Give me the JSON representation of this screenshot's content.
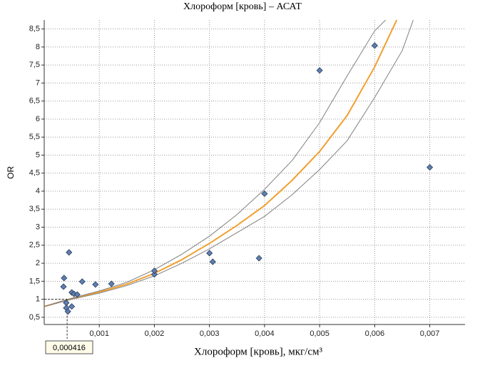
{
  "chart_data": {
    "type": "scatter",
    "title": "Хлороформ [кровь] – АСАТ",
    "x_label": "Хлороформ [кровь], мкг/см³",
    "y_label": "OR",
    "xlim": [
      0,
      0.00764
    ],
    "ylim": [
      0.3,
      8.75
    ],
    "xticks": [
      {
        "value": 0.001,
        "label": "0,001"
      },
      {
        "value": 0.002,
        "label": "0,002"
      },
      {
        "value": 0.003,
        "label": "0,003"
      },
      {
        "value": 0.004,
        "label": "0,004"
      },
      {
        "value": 0.005,
        "label": "0,005"
      },
      {
        "value": 0.006,
        "label": "0,006"
      },
      {
        "value": 0.007,
        "label": "0,007"
      }
    ],
    "yticks": [
      {
        "value": 0.5,
        "label": "0,5"
      },
      1,
      {
        "value": 1.5,
        "label": "1,5"
      },
      2,
      {
        "value": 2.5,
        "label": "2,5"
      },
      3,
      {
        "value": 3.5,
        "label": "3,5"
      },
      4,
      {
        "value": 4.5,
        "label": "4,5"
      },
      5,
      {
        "value": 5.5,
        "label": "5,5"
      },
      6,
      {
        "value": 6.5,
        "label": "6,5"
      },
      7,
      {
        "value": 7.5,
        "label": "7,5"
      },
      8,
      {
        "value": 8.5,
        "label": "8,5"
      }
    ],
    "grid": true,
    "points": {
      "color": "#5f7fae",
      "x": [
        0.00045,
        0.00036,
        0.00035,
        0.0004,
        0.0004,
        0.00043,
        0.0005,
        0.0005,
        0.00054,
        0.0006,
        0.00069,
        0.00093,
        0.00122,
        0.002,
        0.002,
        0.003,
        0.00306,
        0.0039,
        0.004,
        0.005,
        0.006,
        0.007
      ],
      "values": [
        2.3,
        1.59,
        1.35,
        0.9,
        0.76,
        0.66,
        0.8,
        1.19,
        1.15,
        1.13,
        1.49,
        1.41,
        1.43,
        1.69,
        1.79,
        2.28,
        2.04,
        2.14,
        3.93,
        7.35,
        8.04,
        4.66
      ]
    },
    "curves": [
      {
        "color": "#f0a030",
        "x": [
          0,
          0.0005,
          0.001,
          0.0015,
          0.002,
          0.0025,
          0.003,
          0.0035,
          0.004,
          0.0045,
          0.005,
          0.0055,
          0.006,
          0.0064
        ],
        "values": [
          0.8,
          1.02,
          1.2,
          1.42,
          1.72,
          2.1,
          2.55,
          3.05,
          3.6,
          4.3,
          5.1,
          6.1,
          7.45,
          8.75
        ]
      },
      {
        "color": "#808080",
        "x": [
          0,
          0.0005,
          0.001,
          0.0015,
          0.002,
          0.0025,
          0.003,
          0.0035,
          0.004,
          0.0045,
          0.005,
          0.0055,
          0.006,
          0.0062
        ],
        "values": [
          0.8,
          1.03,
          1.23,
          1.47,
          1.82,
          2.25,
          2.75,
          3.35,
          4.05,
          4.85,
          5.9,
          7.2,
          8.45,
          8.75
        ]
      },
      {
        "color": "#808080",
        "x": [
          0,
          0.0005,
          0.001,
          0.0015,
          0.002,
          0.0025,
          0.003,
          0.0035,
          0.004,
          0.0045,
          0.005,
          0.0055,
          0.006,
          0.0065,
          0.0067
        ],
        "values": [
          0.8,
          1.0,
          1.17,
          1.38,
          1.65,
          2.0,
          2.4,
          2.85,
          3.3,
          3.9,
          4.6,
          5.4,
          6.6,
          7.9,
          8.75
        ]
      }
    ],
    "marker": {
      "x": {
        "value": 0.000416,
        "label": "0,000416"
      },
      "y": 1
    }
  }
}
